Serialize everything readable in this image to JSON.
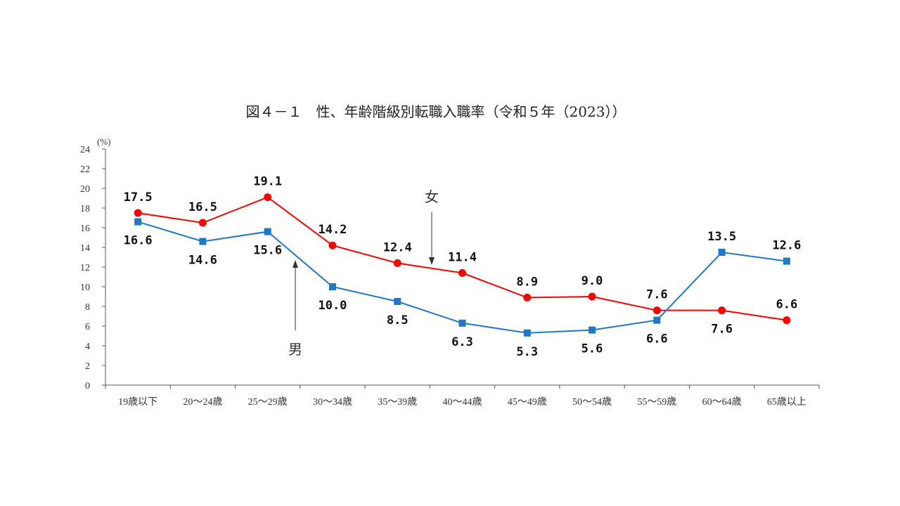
{
  "chart_data": {
    "type": "line",
    "title": "図４－１　性、年齢階級別転職入職率（令和５年（2023））",
    "y_unit": "(%)",
    "ylim": [
      0,
      24
    ],
    "y_ticks": [
      "0",
      "2",
      "4",
      "6",
      "8",
      "10",
      "12",
      "14",
      "16",
      "18",
      "20",
      "22",
      "24"
    ],
    "grid": false,
    "categories": [
      "19歳以下",
      "20～24歳",
      "25～29歳",
      "30～34歳",
      "35～39歳",
      "40～44歳",
      "45～49歳",
      "50～54歳",
      "55～59歳",
      "60～64歳",
      "65歳以上"
    ],
    "series": [
      {
        "name": "女",
        "color": "#ff0000",
        "marker": "circle",
        "values": [
          17.5,
          16.5,
          19.1,
          14.2,
          12.4,
          11.4,
          8.9,
          9.0,
          7.6,
          7.6,
          6.6
        ],
        "labels": [
          "17.5",
          "16.5",
          "19.1",
          "14.2",
          "12.4",
          "11.4",
          "8.9",
          "9.0",
          "7.6",
          "7.6",
          "6.6"
        ]
      },
      {
        "name": "男",
        "color": "#1f77c8",
        "marker": "square",
        "values": [
          16.6,
          14.6,
          15.6,
          10.0,
          8.5,
          6.3,
          5.3,
          5.6,
          6.6,
          13.5,
          12.6
        ],
        "labels": [
          "16.6",
          "14.6",
          "15.6",
          "10.0",
          "8.5",
          "6.3",
          "5.3",
          "5.6",
          "6.6",
          "13.5",
          "12.6"
        ]
      }
    ]
  }
}
